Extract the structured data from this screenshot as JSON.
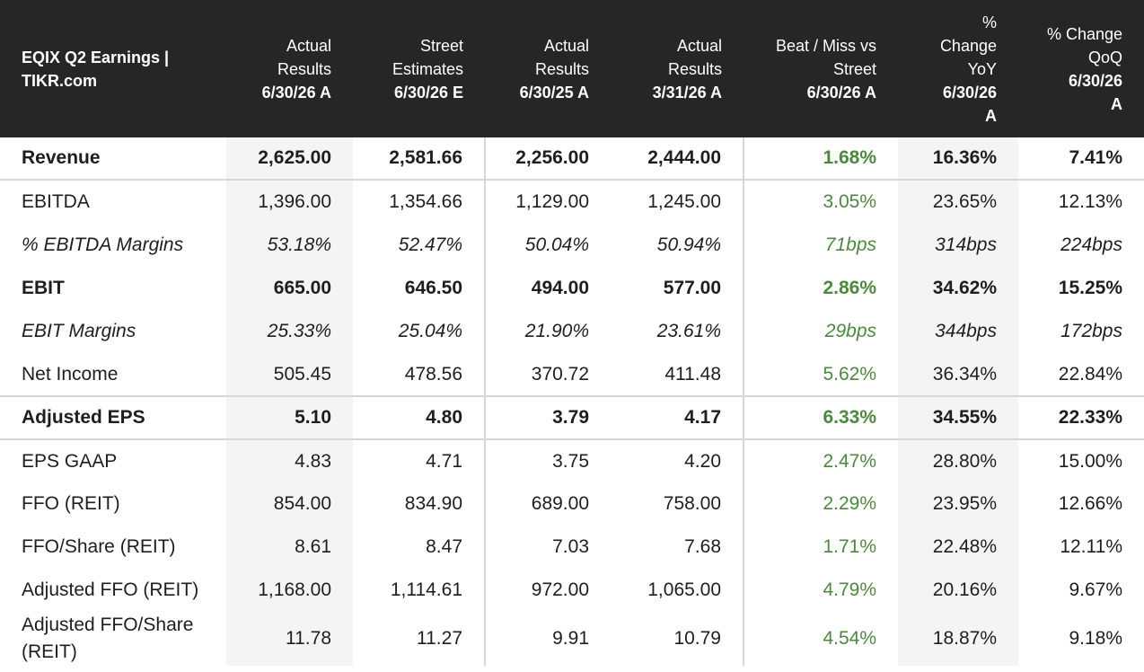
{
  "header": {
    "title_line1": "EQIX Q2 Earnings |",
    "title_line2": "TIKR.com",
    "columns": [
      {
        "l1": "Actual",
        "l2": "Results",
        "date": "6/30/26 A"
      },
      {
        "l1": "Street",
        "l2": "Estimates",
        "date": "6/30/26 E"
      },
      {
        "l1": "Actual",
        "l2": "Results",
        "date": "6/30/25 A"
      },
      {
        "l1": "Actual",
        "l2": "Results",
        "date": "3/31/26 A"
      },
      {
        "l1": "Beat / Miss vs",
        "l2": "Street",
        "date": "6/30/26 A"
      },
      {
        "l1": "%",
        "l2": "Change",
        "l3": "YoY",
        "date": "6/30/26",
        "date2": "A"
      },
      {
        "l1": "% Change",
        "l2": "QoQ",
        "date": "6/30/26",
        "date2": "A"
      }
    ]
  },
  "rows": [
    {
      "label": "Revenue",
      "v": [
        "2,625.00",
        "2,581.66",
        "2,256.00",
        "2,444.00",
        "1.68%",
        "16.36%",
        "7.41%"
      ]
    },
    {
      "label": "EBITDA",
      "v": [
        "1,396.00",
        "1,354.66",
        "1,129.00",
        "1,245.00",
        "3.05%",
        "23.65%",
        "12.13%"
      ]
    },
    {
      "label": "% EBITDA Margins",
      "v": [
        "53.18%",
        "52.47%",
        "50.04%",
        "50.94%",
        "71bps",
        "314bps",
        "224bps"
      ]
    },
    {
      "label": "EBIT",
      "v": [
        "665.00",
        "646.50",
        "494.00",
        "577.00",
        "2.86%",
        "34.62%",
        "15.25%"
      ]
    },
    {
      "label": "EBIT Margins",
      "v": [
        "25.33%",
        "25.04%",
        "21.90%",
        "23.61%",
        "29bps",
        "344bps",
        "172bps"
      ]
    },
    {
      "label": "Net Income",
      "v": [
        "505.45",
        "478.56",
        "370.72",
        "411.48",
        "5.62%",
        "36.34%",
        "22.84%"
      ]
    },
    {
      "label": "Adjusted EPS",
      "v": [
        "5.10",
        "4.80",
        "3.79",
        "4.17",
        "6.33%",
        "34.55%",
        "22.33%"
      ]
    },
    {
      "label": "EPS GAAP",
      "v": [
        "4.83",
        "4.71",
        "3.75",
        "4.20",
        "2.47%",
        "28.80%",
        "15.00%"
      ]
    },
    {
      "label": "FFO (REIT)",
      "v": [
        "854.00",
        "834.90",
        "689.00",
        "758.00",
        "2.29%",
        "23.95%",
        "12.66%"
      ]
    },
    {
      "label": "FFO/Share (REIT)",
      "v": [
        "8.61",
        "8.47",
        "7.03",
        "7.68",
        "1.71%",
        "22.48%",
        "12.11%"
      ]
    },
    {
      "label": "Adjusted FFO (REIT)",
      "v": [
        "1,168.00",
        "1,114.61",
        "972.00",
        "1,065.00",
        "4.79%",
        "20.16%",
        "9.67%"
      ]
    },
    {
      "label": "Adjusted FFO/Share (REIT)",
      "v": [
        "11.78",
        "11.27",
        "9.91",
        "10.79",
        "4.54%",
        "18.87%",
        "9.18%"
      ]
    }
  ],
  "colors": {
    "header_bg": "#262626",
    "beat_green": "#4a8a3c",
    "shade": "#f4f4f4"
  }
}
